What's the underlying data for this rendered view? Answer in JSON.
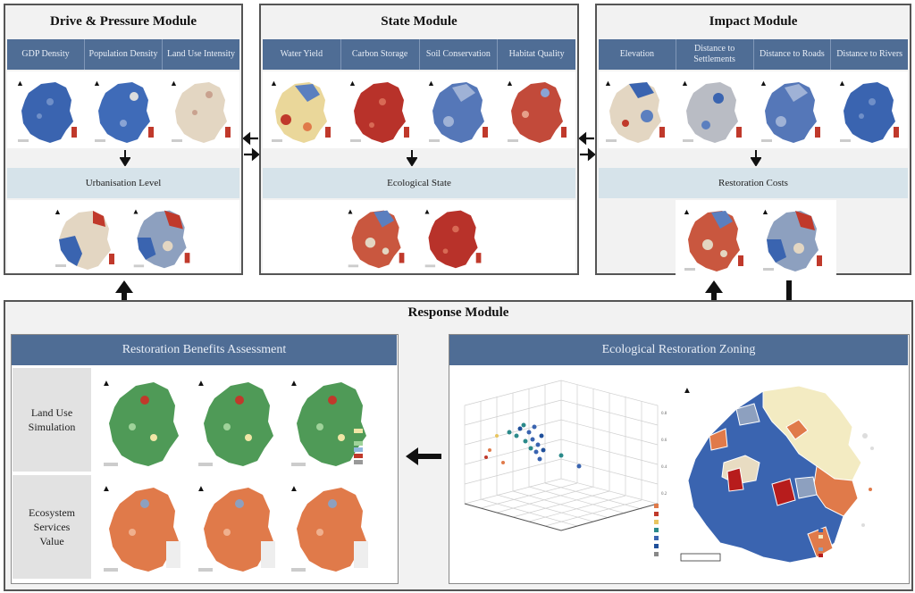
{
  "drive_module": {
    "title": "Drive & Pressure Module",
    "columns": [
      "GDP Density",
      "Population Density",
      "Land Use Intensity"
    ],
    "band": "Urbanisation Level"
  },
  "state_module": {
    "title": "State Module",
    "columns": [
      "Water Yield",
      "Carbon Storage",
      "Soil Conservation",
      "Habitat Quality"
    ],
    "band": "Ecological State"
  },
  "impact_module": {
    "title": "Impact Module",
    "columns": [
      "Elevation",
      "Distance to Settlements",
      "Distance to Roads",
      "Distance to Rivers"
    ],
    "band": "Restoration Costs"
  },
  "response_module": {
    "title": "Response Module",
    "left_header": "Restoration Benefits Assessment",
    "right_header": "Ecological Restoration Zoning",
    "rows": [
      "Land Use Simulation",
      "Ecosystem Services Value"
    ]
  },
  "colors": {
    "header_blue": "#4f6d95",
    "band_blue": "#d6e3ea",
    "map_blue": "#3a64b0",
    "map_red": "#c0392b",
    "map_beige": "#e8dcc2",
    "map_green": "#4f9a57",
    "map_orange": "#e07a4a"
  }
}
